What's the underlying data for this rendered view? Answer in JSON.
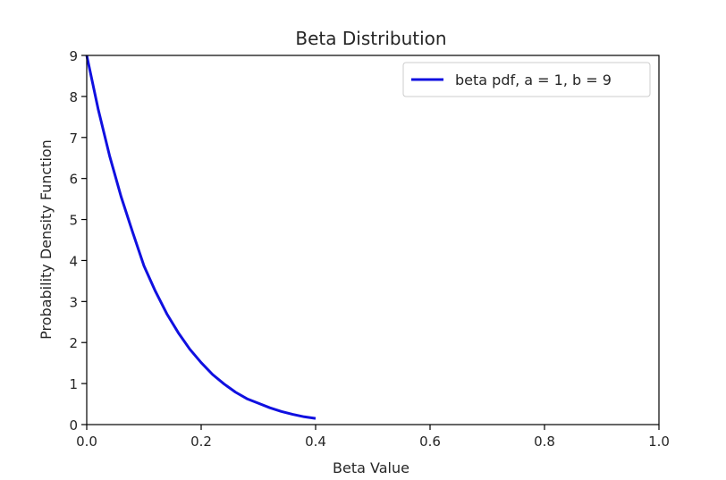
{
  "chart_data": {
    "type": "line",
    "title": "Beta Distribution",
    "xlabel": "Beta Value",
    "ylabel": "Probability Density Function",
    "xlim": [
      0,
      1
    ],
    "ylim": [
      0,
      9
    ],
    "xticks": [
      0.0,
      0.2,
      0.4,
      0.6,
      0.8,
      1.0
    ],
    "xtick_labels": [
      "0.0",
      "0.2",
      "0.4",
      "0.6",
      "0.8",
      "1.0"
    ],
    "yticks": [
      0,
      1,
      2,
      3,
      4,
      5,
      6,
      7,
      8,
      9
    ],
    "ytick_labels": [
      "0",
      "1",
      "2",
      "3",
      "4",
      "5",
      "6",
      "7",
      "8",
      "9"
    ],
    "grid": false,
    "legend_position": "top-right",
    "series": [
      {
        "name": "beta pdf, a = 1, b = 9",
        "color": "#1010e0",
        "x": [
          0.0,
          0.02,
          0.04,
          0.06,
          0.08,
          0.1,
          0.12,
          0.14,
          0.16,
          0.18,
          0.2,
          0.22,
          0.24,
          0.26,
          0.28,
          0.3,
          0.32,
          0.34,
          0.36,
          0.38,
          0.4
        ],
        "y": [
          9.0,
          7.69,
          6.55,
          5.56,
          4.7,
          3.87,
          3.25,
          2.7,
          2.24,
          1.84,
          1.51,
          1.22,
          0.99,
          0.79,
          0.63,
          0.52,
          0.41,
          0.32,
          0.25,
          0.19,
          0.15
        ]
      }
    ]
  }
}
